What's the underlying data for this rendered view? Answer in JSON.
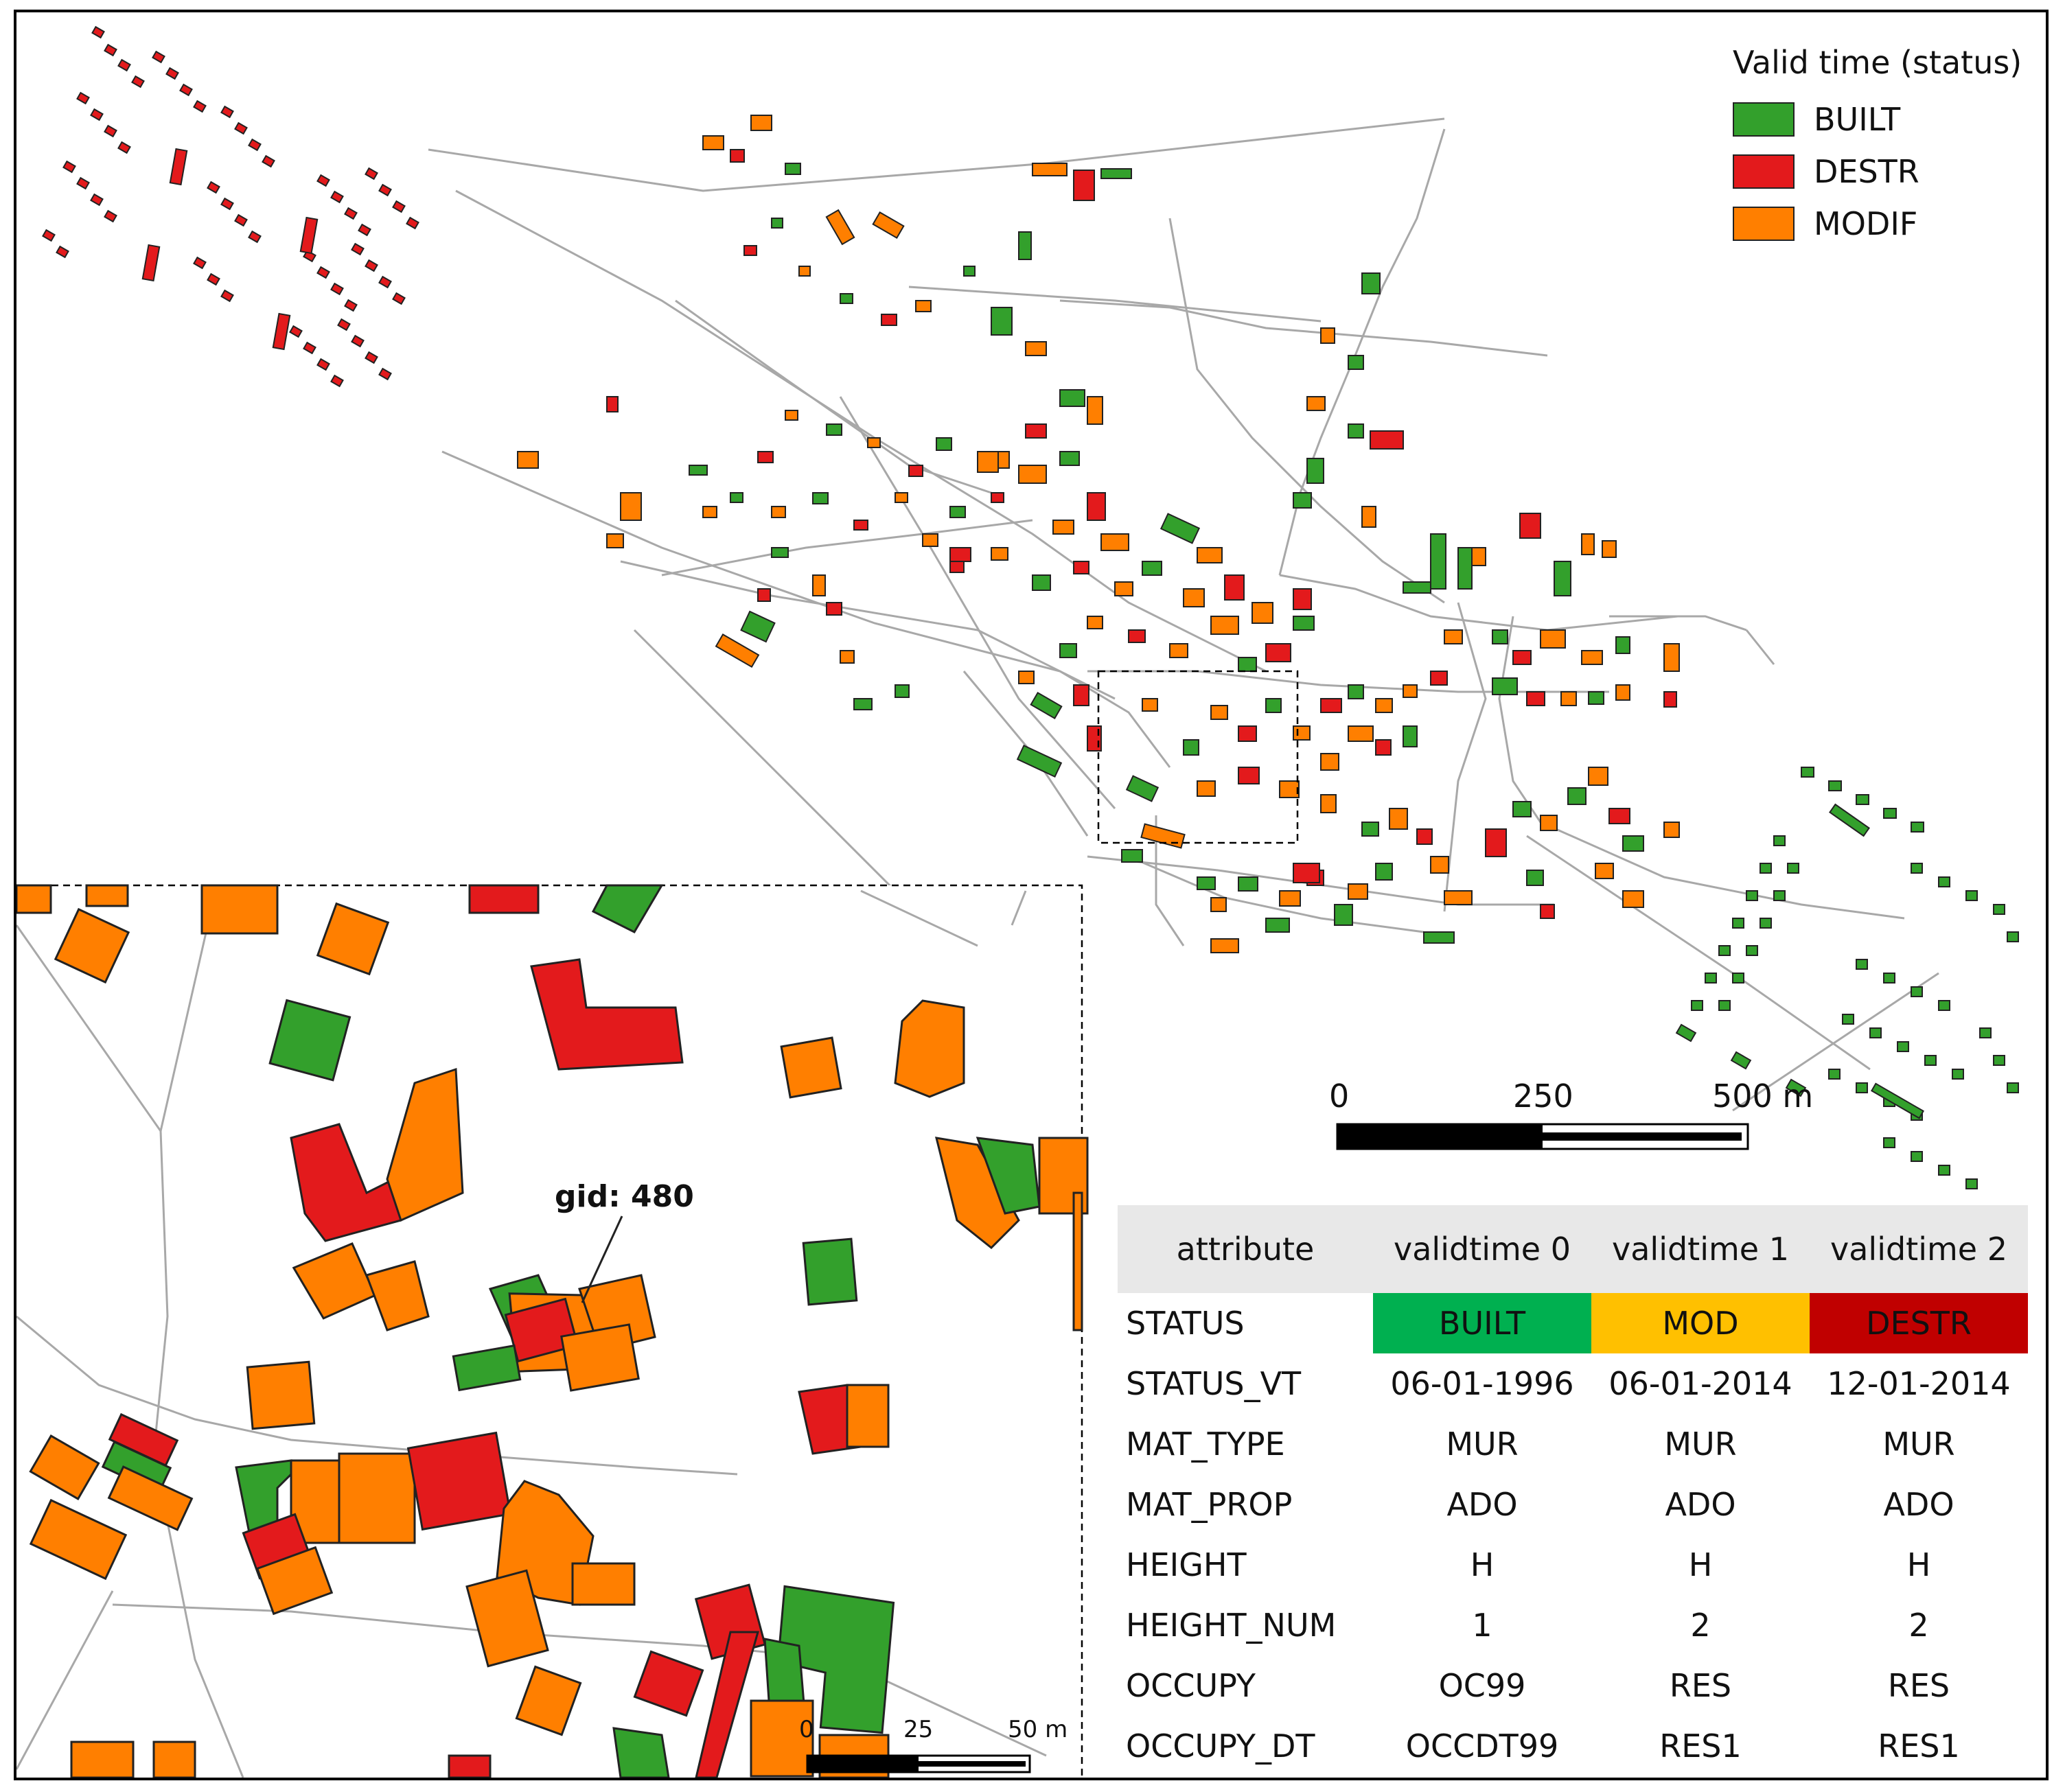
{
  "legend": {
    "title": "Valid time (status)",
    "items": [
      {
        "label": "BUILT",
        "color": "#33a02c"
      },
      {
        "label": "DESTR",
        "color": "#e31a1c"
      },
      {
        "label": "MODIF",
        "color": "#ff7f00"
      }
    ]
  },
  "scalebar": {
    "ticks": [
      "0",
      "250",
      "500 m"
    ]
  },
  "inset": {
    "label": "gid: 480",
    "scalebar": {
      "ticks": [
        "0",
        "25",
        "50 m"
      ]
    }
  },
  "table": {
    "headers": [
      "attribute",
      "validtime 0",
      "validtime 1",
      "validtime 2"
    ],
    "status_row": {
      "key": "STATUS",
      "values": [
        "BUILT",
        "MOD",
        "DESTR"
      ],
      "colors": [
        "#00b050",
        "#ffc000",
        "#c00000"
      ]
    },
    "rows": [
      {
        "key": "STATUS_VT",
        "values": [
          "06-01-1996",
          "06-01-2014",
          "12-01-2014"
        ]
      },
      {
        "key": "MAT_TYPE",
        "values": [
          "MUR",
          "MUR",
          "MUR"
        ]
      },
      {
        "key": "MAT_PROP",
        "values": [
          "ADO",
          "ADO",
          "ADO"
        ]
      },
      {
        "key": "HEIGHT",
        "values": [
          "H",
          "H",
          "H"
        ]
      },
      {
        "key": "HEIGHT_NUM",
        "values": [
          "1",
          "2",
          "2"
        ]
      },
      {
        "key": "OCCUPY",
        "values": [
          "OC99",
          "RES",
          "RES"
        ]
      },
      {
        "key": "OCCUPY_DT",
        "values": [
          "OCCDT99",
          "RES1",
          "RES1"
        ]
      }
    ]
  }
}
